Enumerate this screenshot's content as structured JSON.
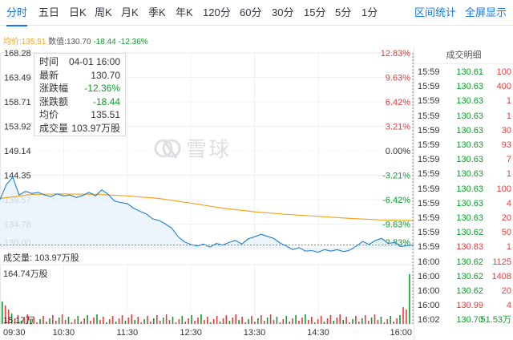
{
  "tabs": [
    {
      "label": "分时",
      "active": true
    },
    {
      "label": "五日"
    },
    {
      "label": "日K"
    },
    {
      "label": "周K"
    },
    {
      "label": "月K"
    },
    {
      "label": "季K"
    },
    {
      "label": "年K"
    },
    {
      "label": "120分"
    },
    {
      "label": "60分"
    },
    {
      "label": "30分"
    },
    {
      "label": "15分"
    },
    {
      "label": "5分"
    },
    {
      "label": "1分"
    }
  ],
  "actions": {
    "interval_stats": "区间统计",
    "fullscreen": "全屏显示"
  },
  "infobar": {
    "avg_label": "均价:",
    "avg_value": "135.51",
    "data_label": "数值:",
    "data_value": "130.70",
    "change": "-18.44",
    "change_pct": "-12.36%"
  },
  "tooltip": [
    {
      "label": "时间",
      "value": "04-01 16:00"
    },
    {
      "label": "最新",
      "value": "130.70"
    },
    {
      "label": "涨跌幅",
      "value": "-12.36%",
      "neg": true
    },
    {
      "label": "涨跌额",
      "value": "-18.44",
      "neg": true
    },
    {
      "label": "均价",
      "value": "135.51"
    },
    {
      "label": "成交量",
      "value": "103.97万股"
    }
  ],
  "watermark": {
    "text": "雪球"
  },
  "volume": {
    "label": "成交量: 103.97万股",
    "max_label": "164.74万股",
    "min_label": "15.17万"
  },
  "trades": {
    "title": "成交明细",
    "rows": [
      {
        "time": "15:59",
        "price": "130.61",
        "qty": "100"
      },
      {
        "time": "15:59",
        "price": "130.63",
        "qty": "400"
      },
      {
        "time": "15:59",
        "price": "130.63",
        "qty": "1"
      },
      {
        "time": "15:59",
        "price": "130.63",
        "qty": "1"
      },
      {
        "time": "15:59",
        "price": "130.63",
        "qty": "30"
      },
      {
        "time": "15:59",
        "price": "130.63",
        "qty": "93"
      },
      {
        "time": "15:59",
        "price": "130.63",
        "qty": "7"
      },
      {
        "time": "15:59",
        "price": "130.63",
        "qty": "1"
      },
      {
        "time": "15:59",
        "price": "130.63",
        "qty": "100"
      },
      {
        "time": "15:59",
        "price": "130.63",
        "qty": "4"
      },
      {
        "time": "15:59",
        "price": "130.63",
        "qty": "20"
      },
      {
        "time": "15:59",
        "price": "130.62",
        "qty": "50"
      },
      {
        "time": "15:59",
        "price": "130.83",
        "qty": "1",
        "up": true
      },
      {
        "time": "16:00",
        "price": "130.62",
        "qty": "1125"
      },
      {
        "time": "16:00",
        "price": "130.62",
        "qty": "1408"
      },
      {
        "time": "16:00",
        "price": "130.62",
        "qty": "20"
      },
      {
        "time": "16:00",
        "price": "130.99",
        "qty": "4",
        "up": true
      },
      {
        "time": "16:02",
        "price": "130.70",
        "qty": "51.53万",
        "qdn": true
      }
    ]
  },
  "colors": {
    "price_line": "#1e7fd0",
    "avg_line": "#f5a623",
    "up": "#e53b3b",
    "down": "#0b9e2a",
    "accent": "#1478f0"
  },
  "chart_data": {
    "type": "line",
    "prev_close": 149.14,
    "ylim": [
      130.0,
      168.28
    ],
    "price_ticks": [
      "168.28",
      "163.49",
      "158.71",
      "153.92",
      "149.14",
      "144.35",
      "139.57",
      "134.78",
      "130.00"
    ],
    "pct_ticks": [
      "12.83%",
      "9.63%",
      "6.42%",
      "3.21%",
      "0.00%",
      "-3.21%",
      "-6.42%",
      "-9.63%",
      "-12.83%"
    ],
    "x_ticks": [
      "09:30",
      "10:30",
      "11:30",
      "12:30",
      "13:30",
      "14:30",
      "16:00"
    ],
    "x_range": [
      "09:30",
      "16:00"
    ],
    "series": [
      {
        "name": "最新",
        "x": [
          "09:30",
          "09:36",
          "09:42",
          "09:48",
          "09:54",
          "10:00",
          "10:06",
          "10:12",
          "10:18",
          "10:24",
          "10:30",
          "10:36",
          "10:42",
          "10:48",
          "10:54",
          "11:00",
          "11:06",
          "11:12",
          "11:18",
          "11:24",
          "11:30",
          "11:36",
          "11:42",
          "11:48",
          "11:54",
          "12:00",
          "12:06",
          "12:12",
          "12:18",
          "12:24",
          "12:30",
          "12:36",
          "12:42",
          "12:48",
          "12:54",
          "13:00",
          "13:06",
          "13:12",
          "13:18",
          "13:24",
          "13:30",
          "13:36",
          "13:42",
          "13:48",
          "13:54",
          "14:00",
          "14:06",
          "14:12",
          "14:18",
          "14:24",
          "14:30",
          "14:36",
          "14:42",
          "14:48",
          "14:54",
          "15:00",
          "15:06",
          "15:12",
          "15:18",
          "15:24",
          "15:30",
          "15:36",
          "15:42",
          "15:48",
          "15:54",
          "16:00"
        ],
        "y": [
          139.6,
          142.5,
          144.0,
          140.5,
          141.2,
          140.8,
          141.0,
          140.5,
          140.2,
          140.7,
          140.3,
          140.5,
          140.0,
          140.4,
          141.0,
          140.3,
          141.5,
          140.6,
          139.3,
          139.0,
          138.8,
          137.9,
          137.3,
          136.8,
          135.8,
          135.5,
          134.8,
          134.0,
          132.3,
          131.3,
          130.8,
          130.5,
          130.9,
          130.3,
          131.0,
          130.7,
          131.2,
          131.6,
          130.9,
          131.9,
          132.3,
          132.8,
          132.4,
          132.0,
          131.1,
          130.5,
          129.8,
          130.2,
          129.5,
          129.6,
          129.3,
          129.8,
          129.5,
          129.8,
          129.4,
          129.7,
          130.5,
          131.4,
          130.8,
          131.6,
          132.0,
          131.0,
          131.2,
          130.4,
          130.6,
          130.7
        ]
      },
      {
        "name": "均价",
        "x": [
          "09:30",
          "10:00",
          "10:30",
          "11:00",
          "11:30",
          "12:00",
          "12:30",
          "13:00",
          "13:30",
          "14:00",
          "14:30",
          "15:00",
          "15:30",
          "16:00"
        ],
        "y": [
          139.8,
          140.6,
          140.7,
          140.6,
          140.3,
          139.8,
          138.9,
          137.9,
          137.2,
          136.7,
          136.3,
          135.9,
          135.6,
          135.51
        ]
      }
    ],
    "volume_ylim": [
      0,
      164.74
    ]
  }
}
